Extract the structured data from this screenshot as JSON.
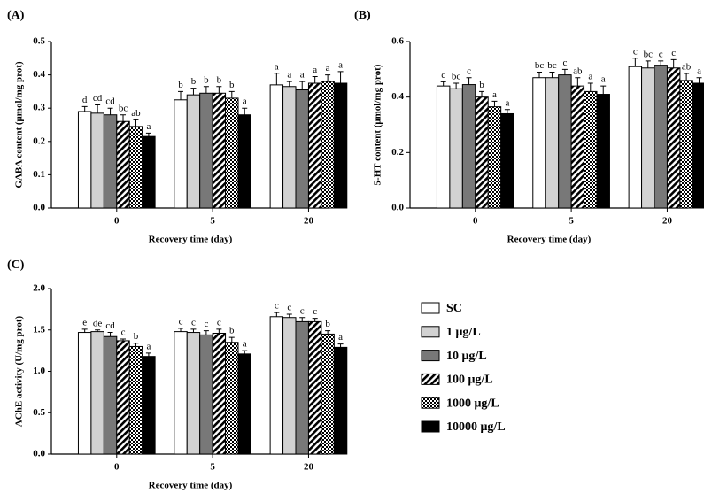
{
  "legend": {
    "entries": [
      {
        "name": "SC",
        "fill": "#ffffff"
      },
      {
        "name": "1 μg/L",
        "fill": "#d2d2d2"
      },
      {
        "name": "10 μg/L",
        "fill": "#787878"
      },
      {
        "name": "100 μg/L",
        "fill": "hatch"
      },
      {
        "name": "1000 μg/L",
        "fill": "checker"
      },
      {
        "name": "10000 μg/L",
        "fill": "#000000"
      }
    ]
  },
  "chart_data": [
    {
      "type": "bar",
      "label": "(A)",
      "y_label": "GABA content (μmol/mg prot)",
      "x_label": "Recovery time (day)",
      "categories": [
        "0",
        "5",
        "20"
      ],
      "ylim": [
        0,
        0.5
      ],
      "yticks": [
        {
          "value": 0,
          "label": "0.0"
        },
        0.1,
        0.2,
        0.3,
        0.4,
        0.5
      ],
      "series": [
        {
          "values": [
            0.29,
            0.325,
            0.37
          ],
          "errors": [
            0.015,
            0.025,
            0.035
          ],
          "letters": [
            "d",
            "b",
            "a"
          ]
        },
        {
          "values": [
            0.285,
            0.34,
            0.365
          ],
          "errors": [
            0.025,
            0.02,
            0.015
          ],
          "letters": [
            "cd",
            "b",
            "a"
          ]
        },
        {
          "values": [
            0.28,
            0.345,
            0.355
          ],
          "errors": [
            0.02,
            0.02,
            0.025
          ],
          "letters": [
            "cd",
            "b",
            "a"
          ]
        },
        {
          "values": [
            0.26,
            0.345,
            0.375
          ],
          "errors": [
            0.02,
            0.02,
            0.02
          ],
          "letters": [
            "bc",
            "b",
            "a"
          ]
        },
        {
          "values": [
            0.245,
            0.33,
            0.38
          ],
          "errors": [
            0.02,
            0.02,
            0.02
          ],
          "letters": [
            "ab",
            "b",
            "a"
          ]
        },
        {
          "values": [
            0.215,
            0.28,
            0.375
          ],
          "errors": [
            0.01,
            0.02,
            0.035
          ],
          "letters": [
            "a",
            "a",
            "a"
          ]
        }
      ]
    },
    {
      "type": "bar",
      "label": "(B)",
      "y_label": "5-HT content (μmol/mg prot)",
      "x_label": "Recovery time (day)",
      "categories": [
        "0",
        "5",
        "20"
      ],
      "ylim": [
        0,
        0.6
      ],
      "yticks": [
        {
          "value": 0,
          "label": "0.0"
        },
        0.2,
        0.4,
        0.6
      ],
      "series": [
        {
          "values": [
            0.44,
            0.47,
            0.51
          ],
          "errors": [
            0.015,
            0.02,
            0.03
          ],
          "letters": [
            "c",
            "bc",
            "c"
          ]
        },
        {
          "values": [
            0.43,
            0.47,
            0.505
          ],
          "errors": [
            0.02,
            0.02,
            0.025
          ],
          "letters": [
            "bc",
            "bc",
            "bc"
          ]
        },
        {
          "values": [
            0.445,
            0.48,
            0.515
          ],
          "errors": [
            0.025,
            0.02,
            0.015
          ],
          "letters": [
            "c",
            "c",
            "c"
          ]
        },
        {
          "values": [
            0.4,
            0.44,
            0.505
          ],
          "errors": [
            0.02,
            0.03,
            0.03
          ],
          "letters": [
            "b",
            "ab",
            "c"
          ]
        },
        {
          "values": [
            0.365,
            0.42,
            0.46
          ],
          "errors": [
            0.02,
            0.03,
            0.025
          ],
          "letters": [
            "a",
            "a",
            "ab"
          ]
        },
        {
          "values": [
            0.34,
            0.41,
            0.45
          ],
          "errors": [
            0.015,
            0.03,
            0.02
          ],
          "letters": [
            "a",
            "a",
            "a"
          ]
        }
      ]
    },
    {
      "type": "bar",
      "label": "(C)",
      "y_label": "AChE activity (U/mg prot)",
      "x_label": "Recovery time (day)",
      "categories": [
        "0",
        "5",
        "20"
      ],
      "ylim": [
        0,
        2
      ],
      "yticks": [
        {
          "value": 0,
          "label": "0.0"
        },
        0.5,
        {
          "value": 1,
          "label": "1.0"
        },
        1.5,
        {
          "value": 2,
          "label": "2.0"
        }
      ],
      "series": [
        {
          "values": [
            1.47,
            1.48,
            1.66
          ],
          "errors": [
            0.04,
            0.04,
            0.05
          ],
          "letters": [
            "e",
            "c",
            "c"
          ]
        },
        {
          "values": [
            1.48,
            1.47,
            1.65
          ],
          "errors": [
            0.02,
            0.04,
            0.04
          ],
          "letters": [
            "de",
            "c",
            "c"
          ]
        },
        {
          "values": [
            1.42,
            1.44,
            1.6
          ],
          "errors": [
            0.05,
            0.05,
            0.05
          ],
          "letters": [
            "cd",
            "c",
            "c"
          ]
        },
        {
          "values": [
            1.37,
            1.46,
            1.6
          ],
          "errors": [
            0.02,
            0.05,
            0.04
          ],
          "letters": [
            "c",
            "c",
            "c"
          ]
        },
        {
          "values": [
            1.3,
            1.35,
            1.45
          ],
          "errors": [
            0.04,
            0.06,
            0.04
          ],
          "letters": [
            "b",
            "b",
            "b"
          ]
        },
        {
          "values": [
            1.18,
            1.21,
            1.29
          ],
          "errors": [
            0.04,
            0.04,
            0.04
          ],
          "letters": [
            "a",
            "a",
            "a"
          ]
        }
      ]
    }
  ]
}
